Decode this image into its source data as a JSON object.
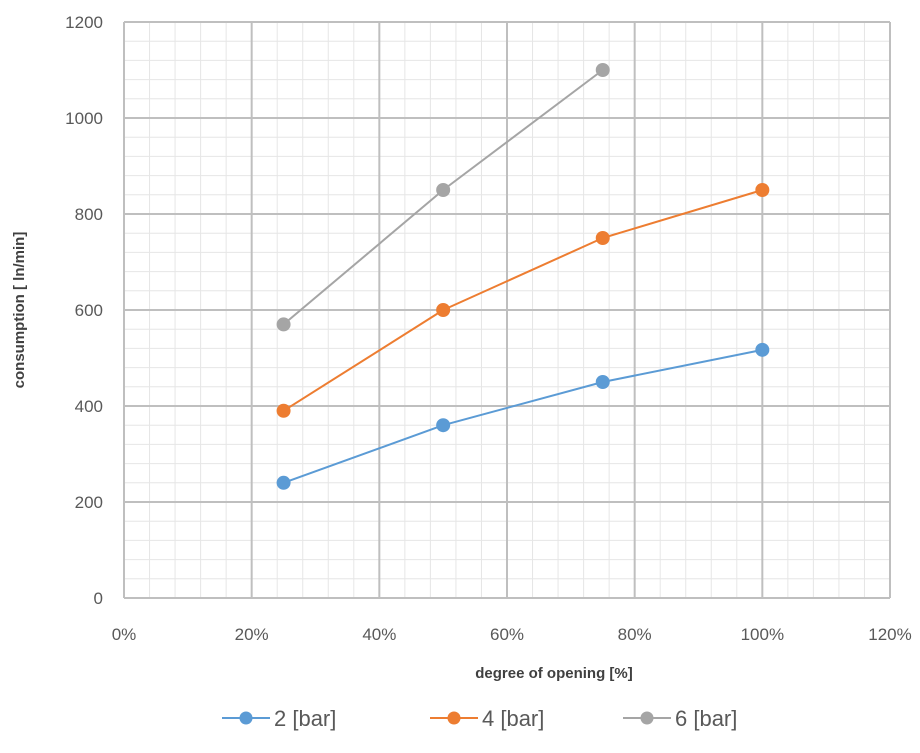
{
  "chart_data": {
    "type": "line",
    "title": "",
    "xlabel": "degree of opening [%]",
    "ylabel": "consumption [ ln/min]",
    "xlim": [
      0,
      120
    ],
    "ylim": [
      0,
      1200
    ],
    "x_ticks": [
      "0%",
      "20%",
      "40%",
      "60%",
      "80%",
      "100%",
      "120%"
    ],
    "y_ticks": [
      "0",
      "200",
      "400",
      "600",
      "800",
      "1000",
      "1200"
    ],
    "grid": true,
    "legend_position": "bottom",
    "series": [
      {
        "name": "2 [bar]",
        "color": "#5B9BD5",
        "points": [
          [
            25,
            240
          ],
          [
            50,
            360
          ],
          [
            75,
            450
          ],
          [
            100,
            517
          ]
        ]
      },
      {
        "name": "4 [bar]",
        "color": "#ED7D31",
        "points": [
          [
            25,
            390
          ],
          [
            50,
            600
          ],
          [
            75,
            750
          ],
          [
            100,
            850
          ]
        ]
      },
      {
        "name": "6 [bar]",
        "color": "#A5A5A5",
        "points": [
          [
            25,
            570
          ],
          [
            50,
            850
          ],
          [
            75,
            1100
          ]
        ]
      }
    ]
  }
}
